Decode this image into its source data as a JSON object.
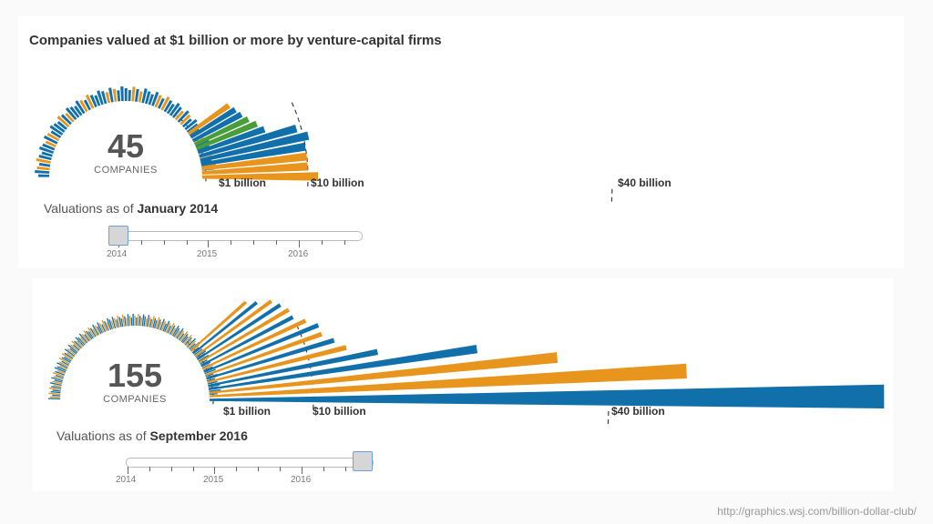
{
  "title": "Companies valued at $1 billion or more by venture-capital firms",
  "source_url": "http://graphics.wsj.com/billion-dollar-club/",
  "colors": {
    "blue": "#1170aa",
    "orange": "#e8951e",
    "green": "#4a9e3a",
    "dash": "#333333"
  },
  "chart_data": [
    {
      "type": "bar",
      "layout": "radial-fan",
      "count": "45",
      "count_label": "COMPANIES",
      "as_of_prefix": "Valuations as of",
      "as_of": "January 2014",
      "thresholds": [
        "$1 billion",
        "$10 billion",
        "$40 billion"
      ],
      "threshold_values": [
        1,
        10,
        40
      ],
      "slider": {
        "years": [
          "2014",
          "2015",
          "2016"
        ],
        "position": 0.0
      },
      "top_values": [
        11,
        10,
        10,
        10,
        10.5,
        9,
        4.5,
        4,
        3.5,
        3.2,
        3,
        2.8
      ],
      "top_colors": [
        "orange",
        "orange",
        "orange",
        "blue",
        "blue",
        "blue",
        "blue",
        "green",
        "green",
        "blue",
        "blue",
        "orange"
      ]
    },
    {
      "type": "bar",
      "layout": "radial-fan",
      "count": "155",
      "count_label": "COMPANIES",
      "as_of_prefix": "Valuations as of",
      "as_of": "September 2016",
      "thresholds": [
        "$1 billion",
        "$10 billion",
        "$40 billion"
      ],
      "threshold_values": [
        1,
        10,
        40
      ],
      "slider": {
        "years": [
          "2014",
          "2015",
          "2016"
        ],
        "position": 1.0
      },
      "top_values": [
        68,
        48,
        35,
        27,
        17,
        14,
        13,
        12,
        12,
        11,
        10,
        10,
        9,
        8,
        6,
        5
      ],
      "top_colors": [
        "blue",
        "orange",
        "orange",
        "blue",
        "blue",
        "orange",
        "blue",
        "orange",
        "blue",
        "orange",
        "blue",
        "orange",
        "blue",
        "orange",
        "blue",
        "orange"
      ]
    }
  ]
}
